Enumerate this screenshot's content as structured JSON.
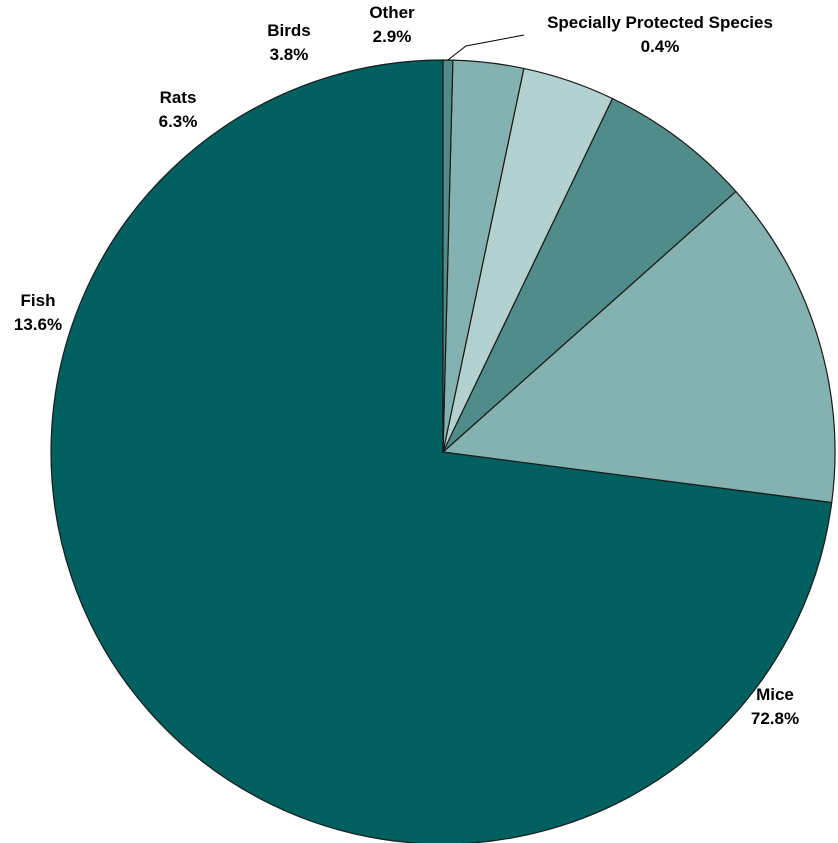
{
  "chart_data": {
    "type": "pie",
    "categories": [
      "Mice",
      "Fish",
      "Rats",
      "Birds",
      "Other",
      "Specially Protected Species"
    ],
    "values": [
      72.8,
      13.6,
      6.3,
      3.8,
      2.9,
      0.4
    ],
    "labels": [
      {
        "name": "Mice",
        "value": "72.8%"
      },
      {
        "name": "Fish",
        "value": "13.6%"
      },
      {
        "name": "Rats",
        "value": "6.3%"
      },
      {
        "name": "Birds",
        "value": "3.8%"
      },
      {
        "name": "Other",
        "value": "2.9%"
      },
      {
        "name": "Specially Protected Species",
        "value": "0.4%"
      }
    ],
    "colors": [
      "#005f5f",
      "#83b2b0",
      "#4f8c8a",
      "#b3d1d1",
      "#83b2b0",
      "#4f8c8a"
    ],
    "start_angle": "12 o'clock",
    "direction": "clockwise"
  }
}
